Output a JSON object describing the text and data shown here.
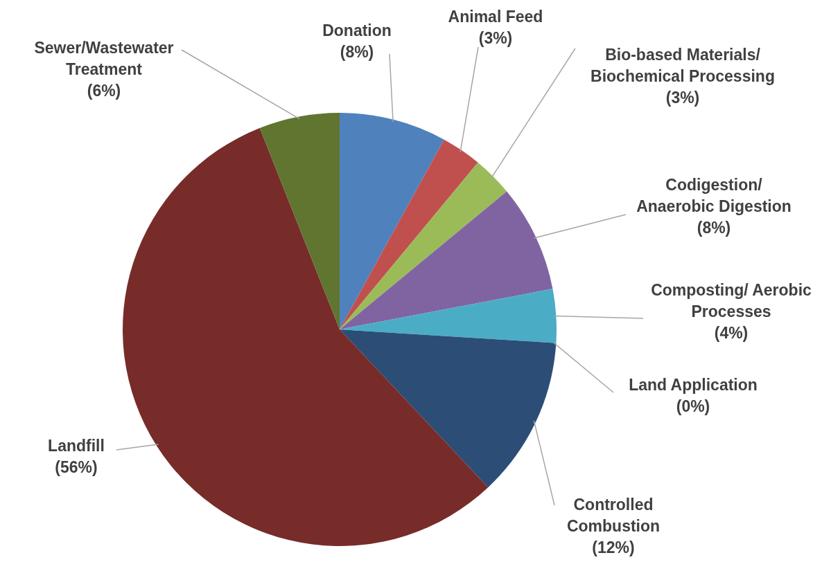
{
  "chart_data": {
    "type": "pie",
    "categories": [
      "Donation",
      "Animal Feed",
      "Bio-based Materials/ Biochemical Processing",
      "Codigestion/ Anaerobic Digestion",
      "Composting/ Aerobic Processes",
      "Land Application",
      "Controlled Combustion",
      "Landfill",
      "Sewer/Wastewater Treatment"
    ],
    "values": [
      8,
      3,
      3,
      8,
      4,
      0,
      12,
      56,
      6
    ],
    "colors": [
      "#4f81bd",
      "#c0504d",
      "#9bbb59",
      "#8064a2",
      "#4bacc6",
      "#f79646",
      "#2c4d75",
      "#772c2a",
      "#5f7530"
    ],
    "value_labels": [
      "(8%)",
      "(3%)",
      "(3%)",
      "(8%)",
      "(4%)",
      "(0%)",
      "(12%)",
      "(56%)",
      "(6%)"
    ]
  }
}
